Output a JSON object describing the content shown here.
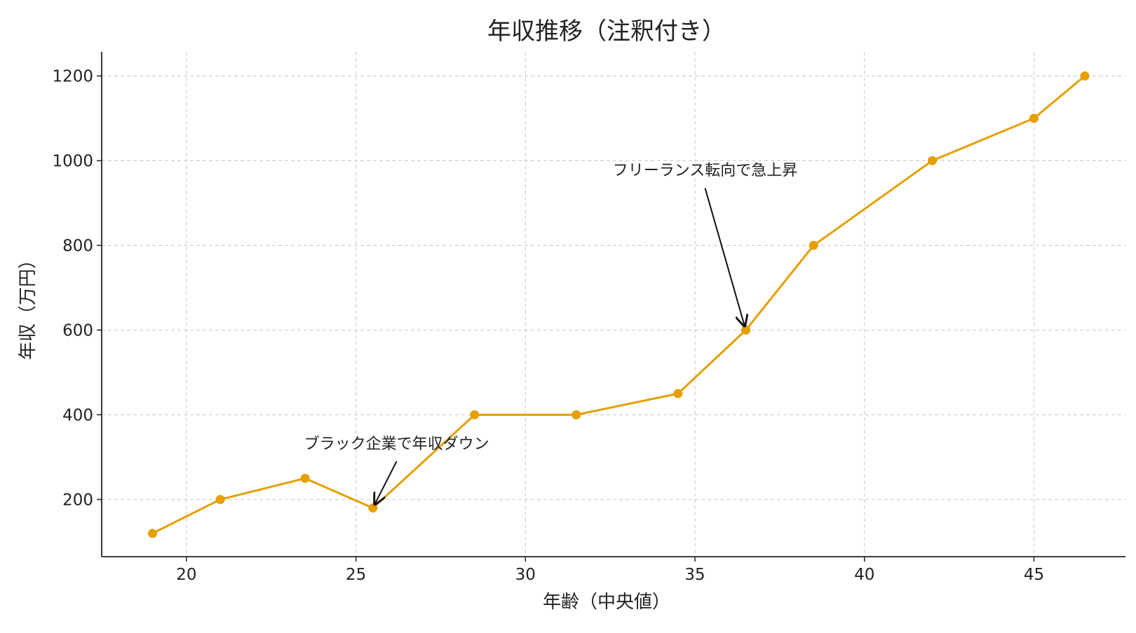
{
  "chart_data": {
    "type": "line",
    "title": "年収推移（注釈付き）",
    "xlabel": "年齢（中央値）",
    "ylabel": "年収（万円）",
    "xlim": [
      17.5,
      47.7
    ],
    "ylim": [
      65,
      1257
    ],
    "xticks": [
      20,
      25,
      30,
      35,
      40,
      45
    ],
    "yticks": [
      200,
      400,
      600,
      800,
      1000,
      1200
    ],
    "grid": true,
    "series": [
      {
        "x": [
          19,
          21,
          23.5,
          25.5,
          28.5,
          31.5,
          34.5,
          36.5,
          38.5,
          42,
          45,
          46.5
        ],
        "y": [
          120,
          200,
          250,
          180,
          400,
          400,
          450,
          600,
          800,
          1000,
          1100,
          1200
        ],
        "color": "#E69F00",
        "marker": "circle"
      }
    ],
    "annotations": [
      {
        "text": "ブラック企業で年収ダウン",
        "point": [
          25.5,
          180
        ],
        "text_at": [
          26.2,
          310
        ]
      },
      {
        "text": "フリーランス転向で急上昇",
        "point": [
          36.5,
          600
        ],
        "text_at": [
          35.3,
          955
        ]
      }
    ]
  }
}
